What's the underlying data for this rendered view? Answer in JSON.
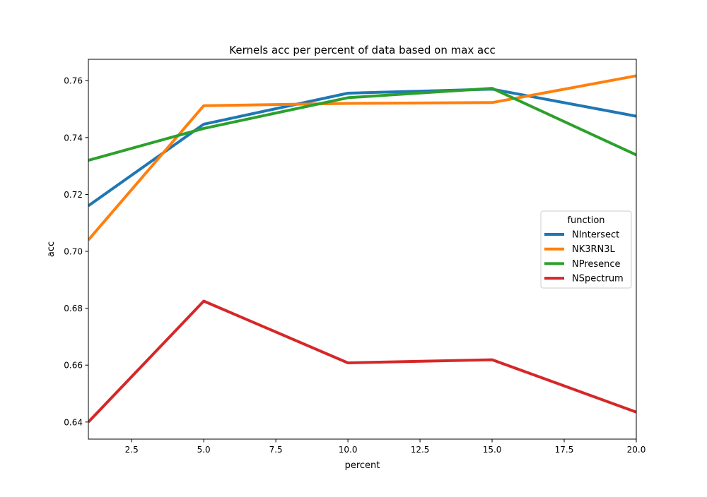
{
  "chart_data": {
    "type": "line",
    "title": "Kernels acc per percent of data based on max acc",
    "xlabel": "percent",
    "ylabel": "acc",
    "xlim": [
      1,
      20
    ],
    "ylim": [
      0.634,
      0.7675
    ],
    "xticks": [
      2.5,
      5.0,
      7.5,
      10.0,
      12.5,
      15.0,
      17.5,
      20.0
    ],
    "xtick_labels": [
      "2.5",
      "5.0",
      "7.5",
      "10.0",
      "12.5",
      "15.0",
      "17.5",
      "20.0"
    ],
    "yticks": [
      0.64,
      0.66,
      0.68,
      0.7,
      0.72,
      0.74,
      0.76
    ],
    "ytick_labels": [
      "0.64",
      "0.66",
      "0.68",
      "0.70",
      "0.72",
      "0.74",
      "0.76"
    ],
    "grid": false,
    "x": [
      1,
      5,
      10,
      15,
      20
    ],
    "legend": {
      "title": "function",
      "placement": "center-right"
    },
    "series": [
      {
        "name": "NIntersect",
        "color": "#1f77b4",
        "values": [
          0.716,
          0.7447,
          0.7556,
          0.757,
          0.7475
        ]
      },
      {
        "name": "NK3RN3L",
        "color": "#ff7f0e",
        "values": [
          0.704,
          0.7512,
          0.752,
          0.7523,
          0.7617
        ]
      },
      {
        "name": "NPresence",
        "color": "#2ca02c",
        "values": [
          0.732,
          0.7432,
          0.754,
          0.7573,
          0.7339
        ]
      },
      {
        "name": "NSpectrum",
        "color": "#d62728",
        "values": [
          0.64,
          0.6825,
          0.6608,
          0.6619,
          0.6435
        ]
      }
    ]
  }
}
